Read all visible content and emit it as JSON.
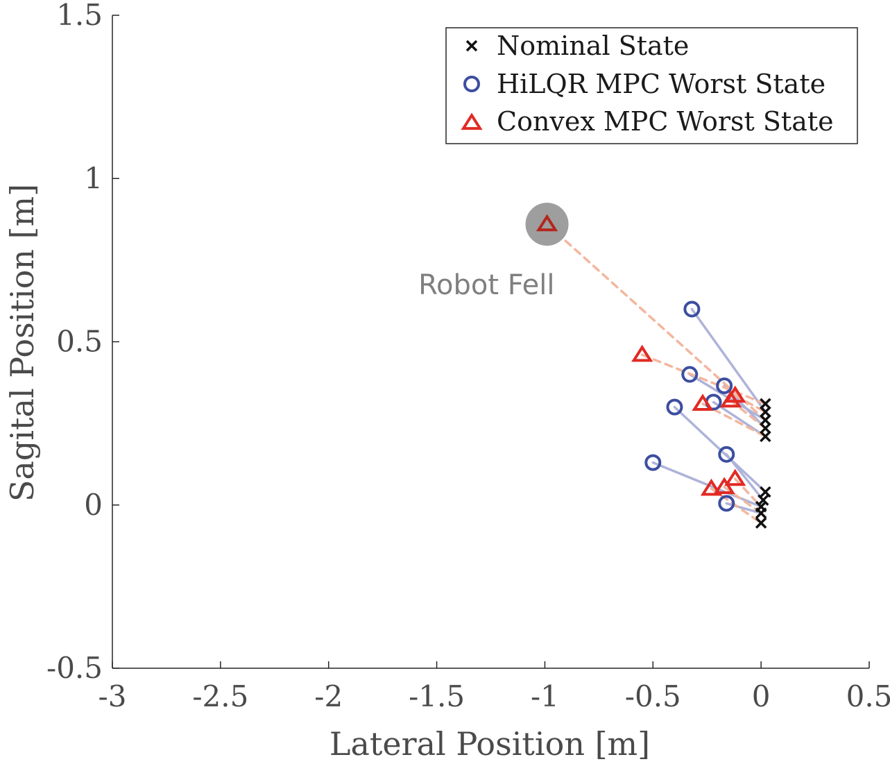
{
  "chart_data": {
    "type": "scatter",
    "xlabel": "Lateral Position [m]",
    "ylabel": "Sagital Position [m]",
    "xlim": [
      -3,
      0.5
    ],
    "ylim": [
      -0.5,
      1.5
    ],
    "xticks": [
      -3,
      -2.5,
      -2,
      -1.5,
      -1,
      -0.5,
      0,
      0.5
    ],
    "xtick_labels": [
      "-3",
      "-2.5",
      "-2",
      "-1.5",
      "-1",
      "-0.5",
      "0",
      "0.5"
    ],
    "yticks": [
      -0.5,
      0,
      0.5,
      1,
      1.5
    ],
    "ytick_labels": [
      "-0.5",
      "0",
      "0.5",
      "1",
      "1.5"
    ],
    "grid": false,
    "legend_position": "top-right",
    "series": [
      {
        "name": "Nominal State",
        "marker": "x",
        "color": "#111111",
        "points": [
          [
            0.02,
            0.31
          ],
          [
            0.02,
            0.285
          ],
          [
            0.02,
            0.26
          ],
          [
            0.02,
            0.235
          ],
          [
            0.02,
            0.21
          ],
          [
            0.02,
            0.04
          ],
          [
            0.01,
            0.015
          ],
          [
            0.0,
            -0.005
          ],
          [
            0.0,
            -0.025
          ],
          [
            0.0,
            -0.055
          ]
        ]
      },
      {
        "name": "HiLQR MPC Worst State",
        "marker": "circle",
        "color": "#3c4ea0",
        "points": [
          [
            -0.32,
            0.6
          ],
          [
            -0.33,
            0.4
          ],
          [
            -0.17,
            0.365
          ],
          [
            -0.22,
            0.315
          ],
          [
            -0.4,
            0.3
          ],
          [
            -0.16,
            0.155
          ],
          [
            -0.5,
            0.13
          ],
          [
            -0.16,
            0.005
          ]
        ]
      },
      {
        "name": "Convex MPC Worst State",
        "marker": "triangle",
        "color": "#e12a24",
        "points": [
          [
            -0.99,
            0.86
          ],
          [
            -0.55,
            0.46
          ],
          [
            -0.12,
            0.335
          ],
          [
            -0.14,
            0.32
          ],
          [
            -0.27,
            0.31
          ],
          [
            -0.12,
            0.08
          ],
          [
            -0.17,
            0.055
          ],
          [
            -0.23,
            0.05
          ]
        ]
      }
    ],
    "connections": {
      "hilqr_color": "#aeb3d9",
      "convex_color": "#f4b69e",
      "hilqr_links": [
        [
          0,
          1
        ],
        [
          1,
          2
        ],
        [
          2,
          3
        ],
        [
          3,
          4
        ],
        [
          4,
          5
        ],
        [
          5,
          6
        ],
        [
          6,
          7
        ],
        [
          7,
          8
        ]
      ],
      "convex_links": [
        [
          0,
          0
        ],
        [
          1,
          1
        ],
        [
          2,
          2
        ],
        [
          3,
          3
        ],
        [
          4,
          4
        ],
        [
          5,
          5
        ],
        [
          6,
          6
        ],
        [
          7,
          7
        ]
      ]
    },
    "annotations": [
      {
        "text": "Robot Fell",
        "x": -1.27,
        "y": 0.675,
        "highlight": [
          -0.99,
          0.86
        ],
        "highlight_color": "#9e9e9e"
      }
    ]
  }
}
